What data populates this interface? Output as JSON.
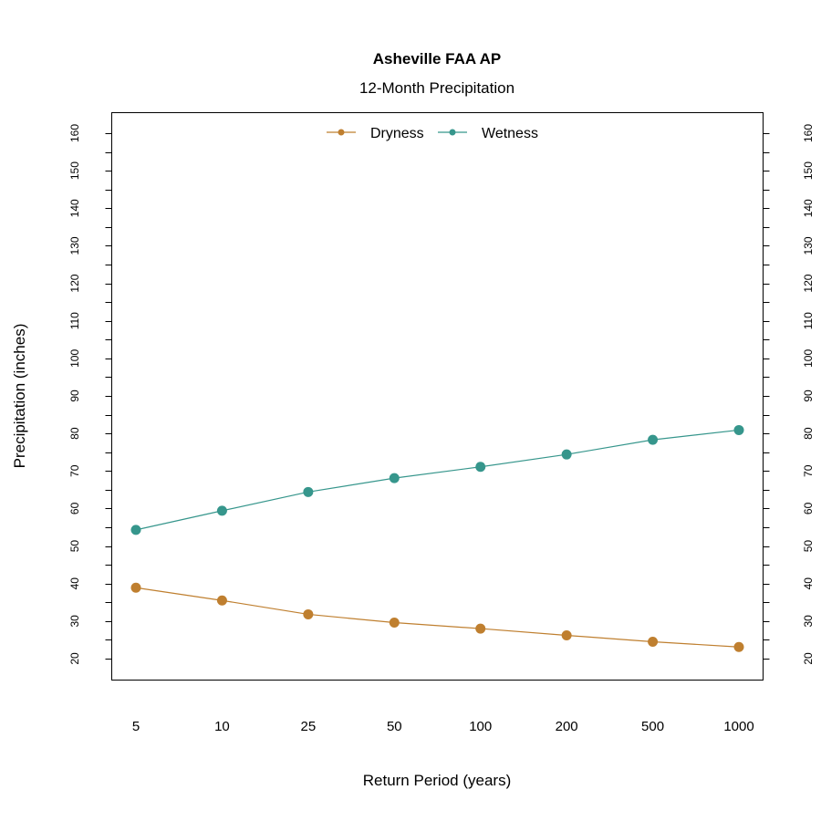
{
  "chart_data": {
    "type": "line",
    "title": "Asheville FAA AP",
    "subtitle": "12-Month Precipitation",
    "xlabel": "Return Period (years)",
    "ylabel": "Precipitation (inches)",
    "categories": [
      "5",
      "10",
      "25",
      "50",
      "100",
      "200",
      "500",
      "1000"
    ],
    "ylim": [
      15,
      165
    ],
    "yticks": [
      20,
      30,
      40,
      50,
      60,
      70,
      80,
      90,
      100,
      110,
      120,
      130,
      140,
      150,
      160
    ],
    "y_minor_step": 5,
    "grid": false,
    "legend_position": "top",
    "series": [
      {
        "name": "Dryness",
        "color": "#BF7F2F",
        "values": [
          38.9,
          35.5,
          31.8,
          29.6,
          28.0,
          26.2,
          24.5,
          23.1
        ]
      },
      {
        "name": "Wetness",
        "color": "#36968C",
        "values": [
          54.3,
          59.4,
          64.4,
          68.1,
          71.1,
          74.4,
          78.3,
          80.9
        ]
      }
    ]
  }
}
